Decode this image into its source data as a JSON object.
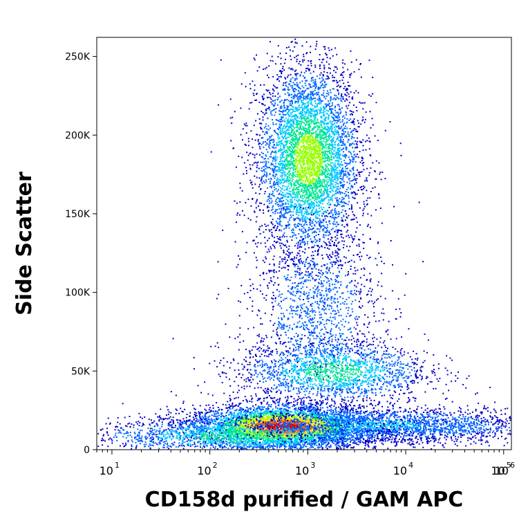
{
  "chart_data": {
    "type": "scatter",
    "subtype": "flow-cytometry density dot plot",
    "title": "",
    "xlabel": "CD158d purified / GAM APC",
    "ylabel": "Side Scatter",
    "x_scale": "log",
    "xlim": [
      7,
      120000
    ],
    "ylim": [
      0,
      262144
    ],
    "x_ticks": [
      {
        "base": "10",
        "exp": "1",
        "value": 10
      },
      {
        "base": "10",
        "exp": "2",
        "value": 100
      },
      {
        "base": "10",
        "exp": "3",
        "value": 1000
      },
      {
        "base": "10",
        "exp": "4",
        "value": 10000
      },
      {
        "base": "10",
        "exp": "5",
        "value": 100000
      },
      {
        "base": "10",
        "exp": "6",
        "value": 1000000
      }
    ],
    "y_ticks": [
      {
        "label": "0",
        "value": 0
      },
      {
        "label": "50K",
        "value": 50000
      },
      {
        "label": "100K",
        "value": 100000
      },
      {
        "label": "150K",
        "value": 150000
      },
      {
        "label": "200K",
        "value": 200000
      },
      {
        "label": "250K",
        "value": 250000
      }
    ],
    "colormap": [
      "#0000c8",
      "#0064ff",
      "#00c8ff",
      "#00e696",
      "#96ff00",
      "#ffdc00",
      "#ff6400",
      "#e60000"
    ],
    "populations": [
      {
        "cx": 1000,
        "cy": 185000,
        "sx_log": 0.12,
        "sy": 30000,
        "n": 5000,
        "peak": 0.6
      },
      {
        "cx": 1200,
        "cy": 90000,
        "sx_log": 0.15,
        "sy": 25000,
        "n": 1200,
        "peak": 0.2
      },
      {
        "cx": 1800,
        "cy": 50000,
        "sx_log": 0.22,
        "sy": 10000,
        "n": 1800,
        "peak": 0.45
      },
      {
        "cx": 550,
        "cy": 15000,
        "sx_log": 0.22,
        "sy": 7000,
        "n": 4500,
        "peak": 1.0
      },
      {
        "cx": 200,
        "cy": 9000,
        "sx_log": 0.35,
        "sy": 6000,
        "n": 1800,
        "peak": 0.45
      },
      {
        "cx": 6000,
        "cy": 16000,
        "sx_log": 0.35,
        "sy": 6000,
        "n": 1800,
        "peak": 0.25
      },
      {
        "cx": 30000,
        "cy": 14000,
        "sx_log": 0.3,
        "sy": 4000,
        "n": 400,
        "peak": 0.12
      }
    ]
  }
}
